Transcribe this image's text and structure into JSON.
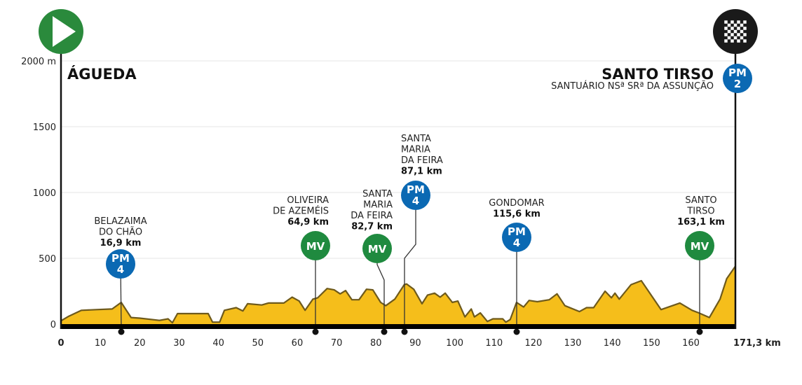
{
  "chart_data": {
    "type": "area",
    "title": "",
    "start": {
      "name": "ÁGUEDA",
      "icon": "play-icon"
    },
    "finish": {
      "name": "SANTO TIRSO",
      "subtitle": "SANTUÁRIO NSª SRª DA ASSUNÇÃO",
      "icon": "checkered-flag-icon",
      "badge": {
        "type": "PM",
        "category": "2"
      }
    },
    "xlabel": "km",
    "ylabel": "m",
    "xlim": [
      0,
      171.3
    ],
    "ylim": [
      0,
      2000
    ],
    "x_ticks": [
      "0",
      "10",
      "20",
      "30",
      "40",
      "50",
      "60",
      "70",
      "80",
      "90",
      "100",
      "110",
      "120",
      "130",
      "140",
      "150",
      "160",
      "171,3 km"
    ],
    "x_tick_values": [
      0,
      10,
      20,
      30,
      40,
      50,
      60,
      70,
      80,
      90,
      100,
      110,
      120,
      130,
      140,
      150,
      160,
      171.3
    ],
    "y_ticks": [
      "0",
      "500",
      "1000",
      "1500",
      "2000 m"
    ],
    "y_tick_values": [
      0,
      500,
      1000,
      1500,
      2000
    ],
    "grid": true,
    "colors": {
      "profile": "#f5be1b",
      "profile_edge": "#6e5a1c",
      "mv": "#1f8a3f",
      "pm": "#0b69b3",
      "start": "#2a8a3c",
      "finish": "#1a1a1a"
    },
    "profile": [
      [
        0,
        25
      ],
      [
        2,
        60
      ],
      [
        5.2,
        105
      ],
      [
        9,
        110
      ],
      [
        13,
        115
      ],
      [
        15.3,
        165
      ],
      [
        17.8,
        50
      ],
      [
        20,
        45
      ],
      [
        25,
        28
      ],
      [
        27.2,
        40
      ],
      [
        28.3,
        10
      ],
      [
        29.6,
        80
      ],
      [
        34.4,
        80
      ],
      [
        37.4,
        80
      ],
      [
        38.5,
        15
      ],
      [
        40.3,
        15
      ],
      [
        41.5,
        105
      ],
      [
        44.5,
        125
      ],
      [
        46.2,
        100
      ],
      [
        47.4,
        155
      ],
      [
        51,
        145
      ],
      [
        52.7,
        160
      ],
      [
        56.6,
        160
      ],
      [
        58.7,
        205
      ],
      [
        60.5,
        175
      ],
      [
        62,
        105
      ],
      [
        64,
        190
      ],
      [
        65.2,
        200
      ],
      [
        67.6,
        270
      ],
      [
        69.4,
        260
      ],
      [
        70.9,
        230
      ],
      [
        72.3,
        255
      ],
      [
        73.9,
        185
      ],
      [
        75.7,
        185
      ],
      [
        77.6,
        265
      ],
      [
        79.2,
        260
      ],
      [
        81.2,
        165
      ],
      [
        82.5,
        140
      ],
      [
        84.8,
        190
      ],
      [
        87.2,
        300
      ],
      [
        87.8,
        305
      ],
      [
        89.6,
        265
      ],
      [
        91.7,
        155
      ],
      [
        93.1,
        220
      ],
      [
        94.9,
        235
      ],
      [
        96.3,
        205
      ],
      [
        97.6,
        235
      ],
      [
        99.4,
        165
      ],
      [
        100.8,
        175
      ],
      [
        102.6,
        55
      ],
      [
        104.2,
        115
      ],
      [
        105,
        55
      ],
      [
        106.5,
        85
      ],
      [
        108.3,
        20
      ],
      [
        109.7,
        40
      ],
      [
        112.2,
        40
      ],
      [
        113,
        15
      ],
      [
        114.1,
        35
      ],
      [
        115.7,
        165
      ],
      [
        117.5,
        130
      ],
      [
        118.9,
        180
      ],
      [
        121,
        170
      ],
      [
        124,
        185
      ],
      [
        126,
        230
      ],
      [
        128,
        140
      ],
      [
        131.7,
        95
      ],
      [
        133.5,
        125
      ],
      [
        135.3,
        125
      ],
      [
        138.2,
        250
      ],
      [
        139.8,
        200
      ],
      [
        140.7,
        235
      ],
      [
        141.8,
        190
      ],
      [
        144.8,
        300
      ],
      [
        147.4,
        330
      ],
      [
        152.4,
        110
      ],
      [
        157.2,
        160
      ],
      [
        160.3,
        105
      ],
      [
        162,
        85
      ],
      [
        164.7,
        50
      ],
      [
        167.4,
        190
      ],
      [
        169.1,
        345
      ],
      [
        171.3,
        440
      ]
    ],
    "markers": [
      {
        "km": 16.9,
        "name": [
          "BELAZAIMA",
          "DO CHÃO"
        ],
        "distance": "16,9 km",
        "type": "PM",
        "category": "4"
      },
      {
        "km": 64.9,
        "name": [
          "OLIVEIRA",
          "DE AZEMÉIS"
        ],
        "distance": "64,9 km",
        "type": "MV",
        "category": ""
      },
      {
        "km": 82.7,
        "name": [
          "SANTA",
          "MARIA",
          "DA FEIRA"
        ],
        "distance": "82,7 km",
        "type": "MV",
        "category": ""
      },
      {
        "km": 87.1,
        "name": [
          "SANTA",
          "MARIA",
          "DA FEIRA"
        ],
        "distance": "87,1 km",
        "type": "PM",
        "category": "4"
      },
      {
        "km": 115.6,
        "name": [
          "GONDOMAR"
        ],
        "distance": "115,6 km",
        "type": "PM",
        "category": "4"
      },
      {
        "km": 163.1,
        "name": [
          "SANTO",
          "TIRSO"
        ],
        "distance": "163,1 km",
        "type": "MV",
        "category": ""
      }
    ]
  }
}
